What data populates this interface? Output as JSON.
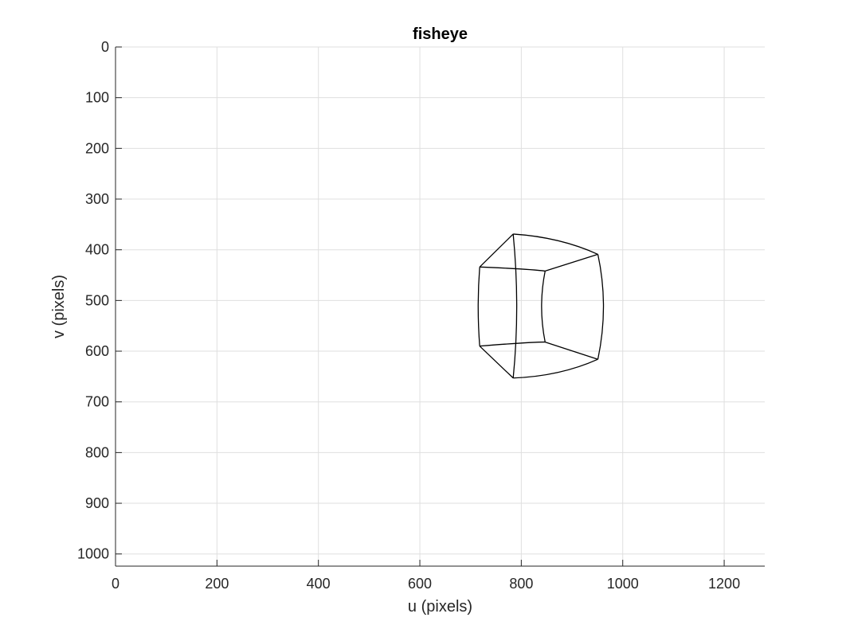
{
  "chart_data": {
    "type": "line",
    "title": "fisheye",
    "xlabel": "u (pixels)",
    "ylabel": "v (pixels)",
    "xlim": [
      0,
      1280
    ],
    "ylim": [
      0,
      1024
    ],
    "y_reversed": true,
    "grid": true,
    "box": false,
    "xticks": [
      0,
      200,
      400,
      600,
      800,
      1000,
      1200
    ],
    "yticks": [
      0,
      100,
      200,
      300,
      400,
      500,
      600,
      700,
      800,
      900,
      1000
    ],
    "line_color": "#000000",
    "series": [
      {
        "points": [
          [
            718,
            434
          ],
          [
            800,
            438
          ],
          [
            847,
            442
          ]
        ]
      },
      {
        "points": [
          [
            847,
            442
          ],
          [
            840,
            512
          ],
          [
            847,
            582
          ]
        ]
      },
      {
        "points": [
          [
            847,
            582
          ],
          [
            800,
            584
          ],
          [
            718,
            590
          ]
        ]
      },
      {
        "points": [
          [
            718,
            590
          ],
          [
            715,
            512
          ],
          [
            718,
            434
          ]
        ]
      },
      {
        "points": [
          [
            784,
            369
          ],
          [
            872,
            382
          ],
          [
            951,
            409
          ]
        ]
      },
      {
        "points": [
          [
            951,
            409
          ],
          [
            962,
            512
          ],
          [
            951,
            616
          ]
        ]
      },
      {
        "points": [
          [
            951,
            616
          ],
          [
            872,
            642
          ],
          [
            784,
            653
          ]
        ]
      },
      {
        "points": [
          [
            784,
            653
          ],
          [
            791,
            512
          ],
          [
            784,
            369
          ]
        ]
      },
      {
        "points": [
          [
            718,
            434
          ],
          [
            784,
            369
          ]
        ]
      },
      {
        "points": [
          [
            847,
            442
          ],
          [
            951,
            409
          ]
        ]
      },
      {
        "points": [
          [
            847,
            582
          ],
          [
            951,
            616
          ]
        ]
      },
      {
        "points": [
          [
            718,
            590
          ],
          [
            784,
            653
          ]
        ]
      }
    ]
  }
}
